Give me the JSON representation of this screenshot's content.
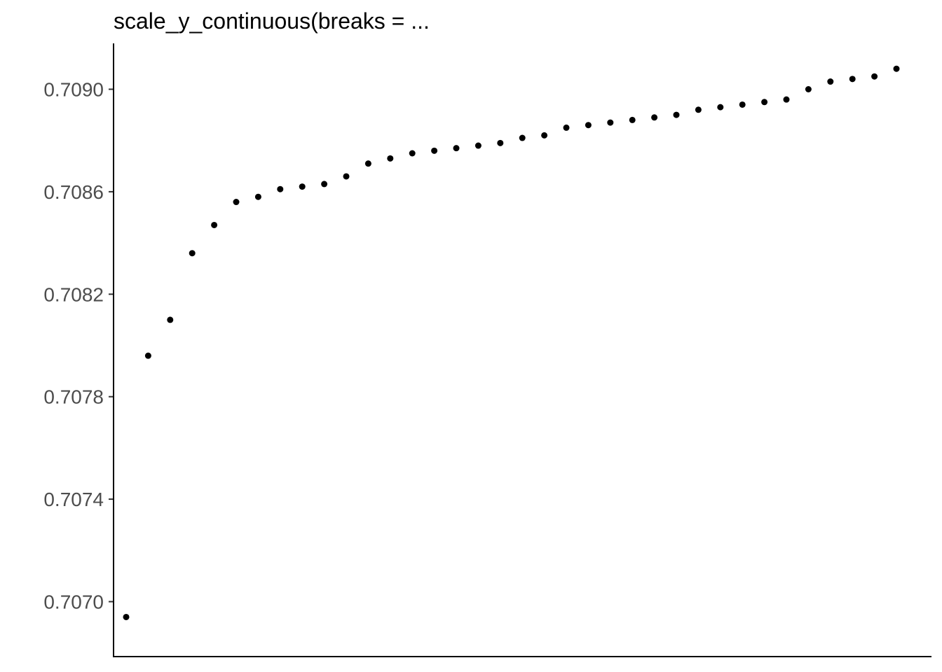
{
  "chart_data": {
    "type": "scatter",
    "title": "scale_y_continuous(breaks = ...",
    "xlabel": "",
    "ylabel": "",
    "ylim": [
      0.70688,
      0.70918
    ],
    "y_ticks": [
      {
        "value": 0.707,
        "label": "0.7070"
      },
      {
        "value": 0.7074,
        "label": "0.7074"
      },
      {
        "value": 0.7078,
        "label": "0.7078"
      },
      {
        "value": 0.7082,
        "label": "0.7082"
      },
      {
        "value": 0.7086,
        "label": "0.7086"
      },
      {
        "value": 0.709,
        "label": "0.7090"
      }
    ],
    "grid": false,
    "x": [
      1,
      2,
      3,
      4,
      5,
      6,
      7,
      8,
      9,
      10,
      11,
      12,
      13,
      14,
      15,
      16,
      17,
      18,
      19,
      20,
      21,
      22,
      23,
      24,
      25,
      26,
      27,
      28,
      29,
      30,
      31,
      32,
      33,
      34,
      35,
      36
    ],
    "values": [
      0.70694,
      0.70796,
      0.7081,
      0.70836,
      0.70847,
      0.70856,
      0.70858,
      0.70861,
      0.70862,
      0.70863,
      0.70866,
      0.70871,
      0.70873,
      0.70875,
      0.70876,
      0.70877,
      0.70878,
      0.70879,
      0.70881,
      0.70882,
      0.70885,
      0.70886,
      0.70887,
      0.70888,
      0.70889,
      0.7089,
      0.70892,
      0.70893,
      0.70894,
      0.70895,
      0.70896,
      0.709,
      0.70903,
      0.70904,
      0.70905,
      0.70908
    ]
  }
}
